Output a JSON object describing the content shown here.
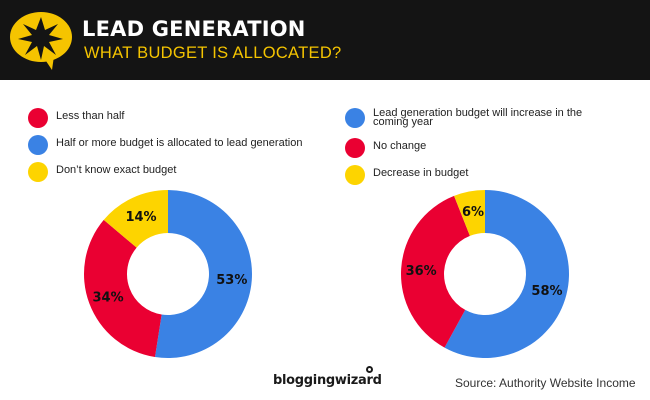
{
  "header": {
    "title": "LEAD GENERATION",
    "subtitle": "WHAT BUDGET IS ALLOCATED?",
    "icon": "star-speech-bubble-icon",
    "background_color": "#141414",
    "accent_color": "#f5c400"
  },
  "chart_data": [
    {
      "type": "pie",
      "title": "",
      "donut": true,
      "start_angle": "top",
      "direction": "clockwise",
      "legend_placement": "top-left",
      "slices": [
        {
          "label": "Half or more budget is allocated to lead generation",
          "value": 53,
          "display": "53%",
          "color": "#3a82e4"
        },
        {
          "label": "Less than half",
          "value": 34,
          "display": "34%",
          "color": "#ea0032"
        },
        {
          "label": "Don’t know exact budget",
          "value": 14,
          "display": "14%",
          "color": "#fdd400"
        }
      ],
      "legend": [
        {
          "label": "Less than half",
          "color": "#ea0032"
        },
        {
          "label": "Half or more budget is allocated to lead generation",
          "color": "#3a82e4"
        },
        {
          "label": "Don’t know exact budget",
          "color": "#fdd400"
        }
      ]
    },
    {
      "type": "pie",
      "title": "",
      "donut": true,
      "start_angle": "top",
      "direction": "clockwise",
      "legend_placement": "top-right",
      "slices": [
        {
          "label": "Lead generation budget will increase in the coming year",
          "value": 58,
          "display": "58%",
          "color": "#3a82e4"
        },
        {
          "label": "No change",
          "value": 36,
          "display": "36%",
          "color": "#ea0032"
        },
        {
          "label": "Decrease in budget",
          "value": 6,
          "display": "6%",
          "color": "#fdd400"
        }
      ],
      "legend": [
        {
          "label": "Lead generation budget will increase in the coming year",
          "color": "#3a82e4"
        },
        {
          "label": "No change",
          "color": "#ea0032"
        },
        {
          "label": "Decrease in budget",
          "color": "#fdd400"
        }
      ]
    }
  ],
  "footer": {
    "brand": "bloggingwizard",
    "source": "Source: Authority Website Income"
  }
}
